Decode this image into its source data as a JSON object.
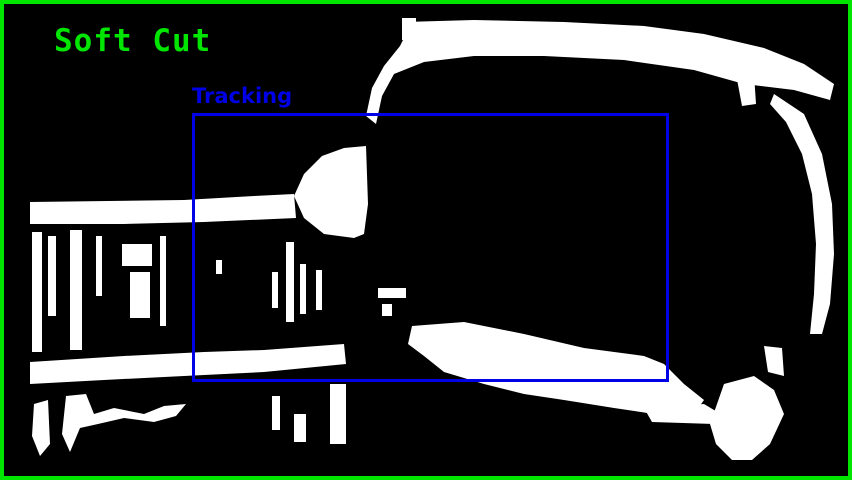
{
  "overlay": {
    "mode_label": "Soft Cut",
    "tracking_label": "Tracking"
  },
  "colors": {
    "frame_border": "#00e600",
    "mode_label": "#00e600",
    "tracking": "#0000e6",
    "mask_foreground": "#ffffff",
    "mask_background": "#000000"
  }
}
